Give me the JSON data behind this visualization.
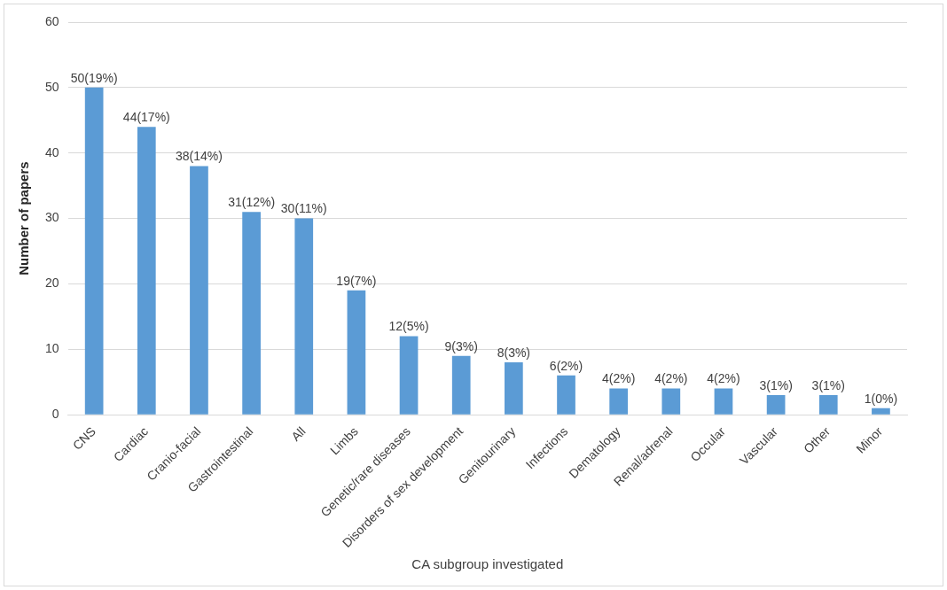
{
  "chart_data": {
    "type": "bar",
    "xlabel": "CA subgroup investigated",
    "ylabel": "Number of papers",
    "categories": [
      "CNS",
      "Cardiac",
      "Cranio-facial",
      "Gastrointestinal",
      "All",
      "Limbs",
      "Genetic/rare diseases",
      "Disorders of sex development",
      "Genitourinary",
      "Infections",
      "Dematology",
      "Renal/adrenal",
      "Occular",
      "Vascular",
      "Other",
      "Minor"
    ],
    "values": [
      50,
      44,
      38,
      31,
      30,
      19,
      12,
      9,
      8,
      6,
      4,
      4,
      4,
      3,
      3,
      1
    ],
    "value_labels": [
      "50(19%)",
      "44(17%)",
      "38(14%)",
      "31(12%)",
      "30(11%)",
      "19(7%)",
      "12(5%)",
      "9(3%)",
      "8(3%)",
      "6(2%)",
      "4(2%)",
      "4(2%)",
      "4(2%)",
      "3(1%)",
      "3(1%)",
      "1(0%)"
    ],
    "color": "#5b9bd5",
    "ylim": [
      0,
      60
    ],
    "yticks": [
      0,
      10,
      20,
      30,
      40,
      50,
      60
    ],
    "grid": "y",
    "legend": false
  }
}
